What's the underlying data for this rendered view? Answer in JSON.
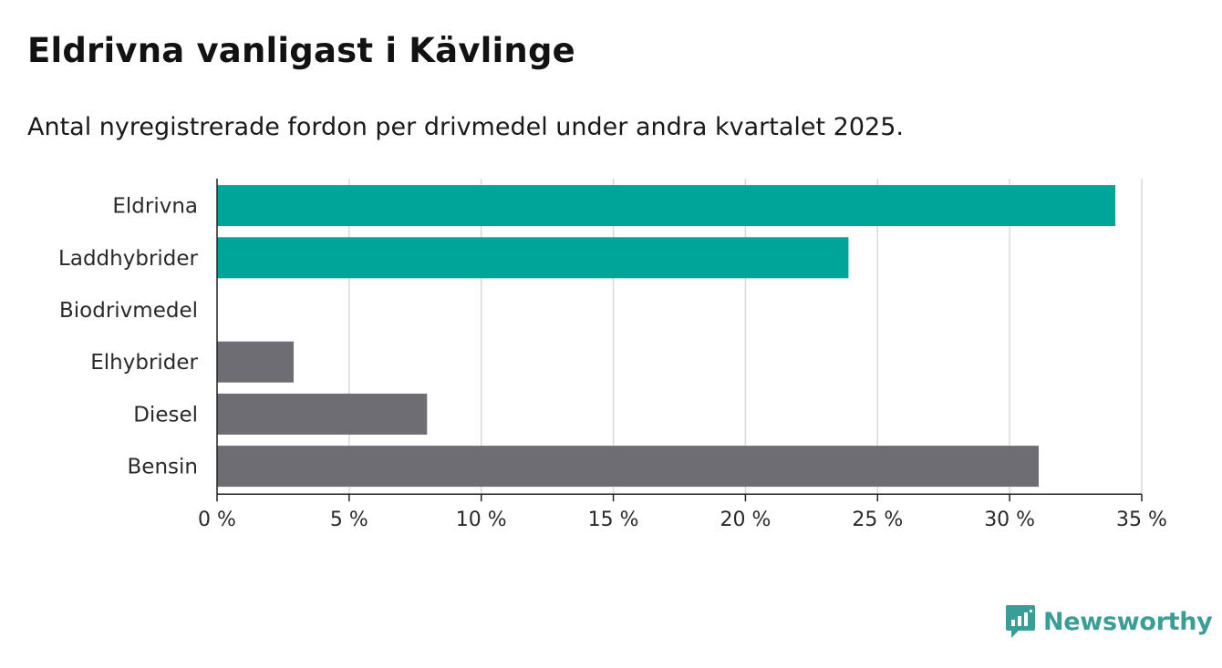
{
  "title": "Eldrivna vanligast i Kävlinge",
  "subtitle": "Antal nyregistrerade fordon per drivmedel under andra kvartalet 2025.",
  "brand": {
    "name": "Newsworthy",
    "color": "#3a9e97",
    "icon": "newsworthy-logo-icon"
  },
  "colors": {
    "highlight": "#00a59a",
    "default": "#6e6d73",
    "grid": "#d9d9d9",
    "axis": "#222222"
  },
  "chart_data": {
    "type": "bar",
    "orientation": "horizontal",
    "categories": [
      "Eldrivna",
      "Laddhybrider",
      "Biodrivmedel",
      "Elhybrider",
      "Diesel",
      "Bensin"
    ],
    "values": [
      34.0,
      23.9,
      0,
      2.9,
      7.95,
      31.1
    ],
    "highlighted": [
      true,
      true,
      true,
      false,
      false,
      false
    ],
    "xlim": [
      0,
      35
    ],
    "ticks": [
      0,
      5,
      10,
      15,
      20,
      25,
      30,
      35
    ],
    "tick_labels": [
      "0 %",
      "5 %",
      "10 %",
      "15 %",
      "20 %",
      "25 %",
      "30 %",
      "35 %"
    ],
    "grid": true,
    "legend": "none"
  }
}
